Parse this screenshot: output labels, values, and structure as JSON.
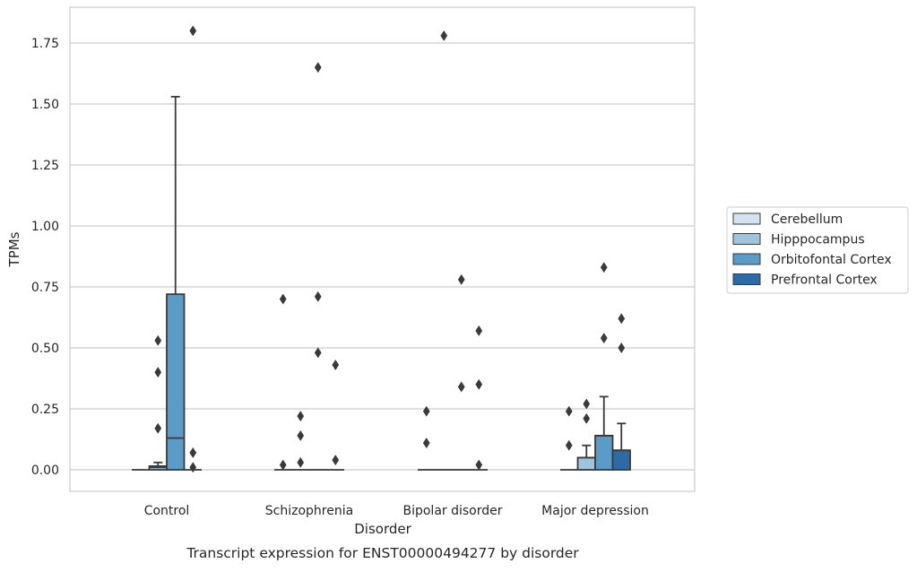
{
  "caption": "Transcript expression for ENST00000494277 by disorder",
  "chart_data": {
    "type": "box",
    "title": "",
    "xlabel": "Disorder",
    "ylabel": "TPMs",
    "ylim": [
      -0.09,
      1.88
    ],
    "yticks": [
      0.0,
      0.25,
      0.5,
      0.75,
      1.0,
      1.25,
      1.5,
      1.75
    ],
    "ytick_labels": [
      "0.00",
      "0.25",
      "0.50",
      "0.75",
      "1.00",
      "1.25",
      "1.50",
      "1.75"
    ],
    "grid": true,
    "legend_placement": "right",
    "categories": [
      "Control",
      "Schizophrenia",
      "Bipolar disorder",
      "Major depression"
    ],
    "series": [
      {
        "name": "Cerebellum",
        "color": "#d4e3f0",
        "boxes": [
          {
            "q1": 0,
            "median": 0,
            "q3": 0,
            "whisker_low": 0,
            "whisker_high": 0,
            "outliers": []
          },
          {
            "q1": 0,
            "median": 0,
            "q3": 0,
            "whisker_low": 0,
            "whisker_high": 0,
            "outliers": [
              0.02,
              0.7
            ]
          },
          {
            "q1": 0,
            "median": 0,
            "q3": 0,
            "whisker_low": 0,
            "whisker_high": 0,
            "outliers": [
              0.11,
              0.24
            ]
          },
          {
            "q1": 0,
            "median": 0,
            "q3": 0,
            "whisker_low": 0,
            "whisker_high": 0,
            "outliers": [
              0.1,
              0.24
            ]
          }
        ]
      },
      {
        "name": "Hipppocampus",
        "color": "#9fc5de",
        "boxes": [
          {
            "q1": 0,
            "median": 0.01,
            "q3": 0.015,
            "whisker_low": 0,
            "whisker_high": 0.03,
            "outliers": [
              0.17,
              0.4,
              0.53
            ]
          },
          {
            "q1": 0,
            "median": 0,
            "q3": 0,
            "whisker_low": 0,
            "whisker_high": 0,
            "outliers": [
              0.03,
              0.14,
              0.22
            ]
          },
          {
            "q1": 0,
            "median": 0,
            "q3": 0,
            "whisker_low": 0,
            "whisker_high": 0,
            "outliers": [
              1.78
            ]
          },
          {
            "q1": 0,
            "median": 0.05,
            "q3": 0.05,
            "whisker_low": 0,
            "whisker_high": 0.1,
            "outliers": [
              0.21,
              0.27
            ]
          }
        ]
      },
      {
        "name": "Orbitofontal Cortex",
        "color": "#5b9bc8",
        "boxes": [
          {
            "q1": 0,
            "median": 0.13,
            "q3": 0.72,
            "whisker_low": 0,
            "whisker_high": 1.53,
            "outliers": []
          },
          {
            "q1": 0,
            "median": 0,
            "q3": 0,
            "whisker_low": 0,
            "whisker_high": 0,
            "outliers": [
              0.48,
              0.71,
              1.65
            ]
          },
          {
            "q1": 0,
            "median": 0,
            "q3": 0,
            "whisker_low": 0,
            "whisker_high": 0,
            "outliers": [
              0.34,
              0.78
            ]
          },
          {
            "q1": 0,
            "median": 0.14,
            "q3": 0.14,
            "whisker_low": 0,
            "whisker_high": 0.3,
            "outliers": [
              0.54,
              0.83
            ]
          }
        ]
      },
      {
        "name": "Prefrontal Cortex",
        "color": "#2c6ba6",
        "boxes": [
          {
            "q1": 0,
            "median": 0,
            "q3": 0,
            "whisker_low": 0,
            "whisker_high": 0,
            "outliers": [
              0.01,
              0.07,
              1.8
            ]
          },
          {
            "q1": 0,
            "median": 0,
            "q3": 0,
            "whisker_low": 0,
            "whisker_high": 0,
            "outliers": [
              0.04,
              0.43
            ]
          },
          {
            "q1": 0,
            "median": 0,
            "q3": 0,
            "whisker_low": 0,
            "whisker_high": 0,
            "outliers": [
              0.02,
              0.35,
              0.57
            ]
          },
          {
            "q1": 0,
            "median": 0.08,
            "q3": 0.08,
            "whisker_low": 0,
            "whisker_high": 0.19,
            "outliers": [
              0.5,
              0.62
            ]
          }
        ]
      }
    ]
  }
}
